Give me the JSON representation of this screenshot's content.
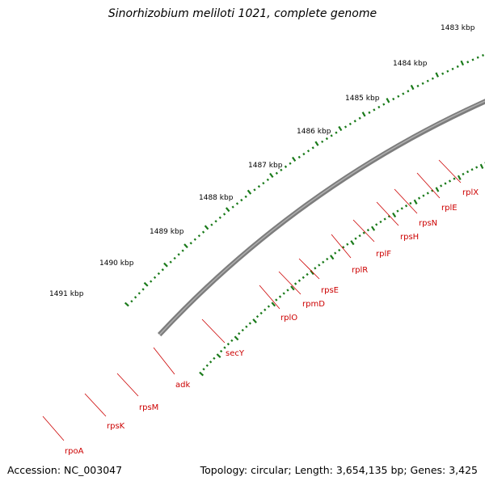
{
  "title": "Sinorhizobium meliloti 1021, complete genome",
  "footer": {
    "accession": "Accession: NC_003047",
    "summary": "Topology: circular; Length: 3,654,135 bp; Genes: 3,425"
  },
  "colors": {
    "backbone": "#7d7d7d",
    "gene": "#ee0000",
    "gene_stroke": "#b00000",
    "cds": "#f08080",
    "tick": "#1a7a1a",
    "label": "#cc0000",
    "adk": "#1ea8e0",
    "secY": "#a0e040",
    "rpoA": "#f5900a"
  },
  "ruler": {
    "unit": "kbp",
    "labels": [
      "1483 kbp",
      "1484 kbp",
      "1485 kbp",
      "1486 kbp",
      "1487 kbp",
      "1488 kbp",
      "1489 kbp",
      "1490 kbp",
      "1491 kbp"
    ]
  },
  "genes": [
    "rplX",
    "rplE",
    "rpsN",
    "rpsH",
    "rplF",
    "rplR",
    "rpsE",
    "rpmD",
    "rplO",
    "secY",
    "adk",
    "rpsM",
    "rpsK",
    "rpoA"
  ]
}
